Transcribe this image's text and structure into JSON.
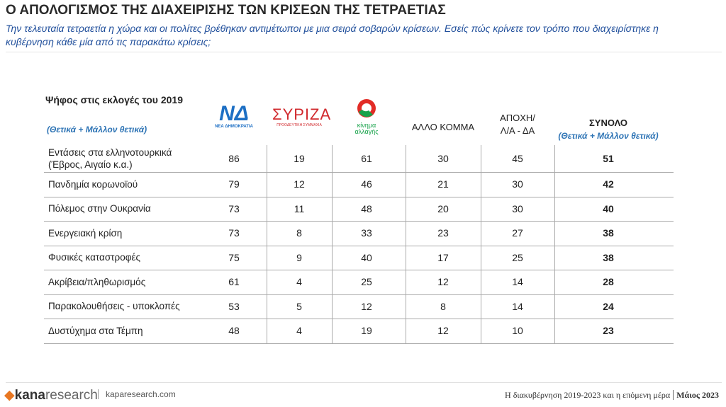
{
  "header": {
    "title": "Ο ΑΠΟΛΟΓΙΣΜΟΣ ΤΗΣ ΔΙΑΧΕΙΡΙΣΗΣ ΤΩΝ ΚΡΙΣΕΩΝ ΤΗΣ ΤΕΤΡΑΕΤΙΑΣ",
    "subtitle_lines": [
      "Την τελευταία τετραετία η χώρα και οι πολίτες βρέθηκαν αντιμέτωποι με μια σειρά σοβαρών κρίσεων. Εσείς πώς κρίνετε τον τρόπο που διαχειρίστηκε η",
      "κυβέρνηση κάθε μία από τις παρακάτω κρίσεις;"
    ]
  },
  "table": {
    "caption": "Ψήφος στις εκλογές του 2019",
    "caption_note": "(Θετικά + Μάλλον θετικά)",
    "logos": {
      "nd": {
        "mark": "ΝΔ",
        "sub": "ΝΕΑ ΔΗΜΟΚΡΑΤΙΑ"
      },
      "syriza": {
        "mark": "ΣΥΡΙΖΑ",
        "sub": "ΠΡΟΟΔΕΥΤΙΚΗ ΣΥΜΜΑΧΙΑ"
      },
      "kinal": {
        "line1": "κίνημα",
        "line2": "αλλαγής"
      }
    },
    "columns": {
      "other": "ΑΛΛΟ ΚΟΜΜΑ",
      "abstain_lines": [
        "ΑΠΟΧΗ/",
        "Λ/Α - ΔΑ"
      ],
      "total": "ΣΥΝΟΛΟ",
      "total_note": "(Θετικά + Μάλλον θετικά)"
    },
    "rows": [
      {
        "label": "Εντάσεις στα ελληνοτουρκικά (Έβρος, Αιγαίο κ.α.)",
        "values": [
          86,
          19,
          61,
          30,
          45,
          51
        ]
      },
      {
        "label": "Πανδημία κορωνοϊού",
        "values": [
          79,
          12,
          46,
          21,
          30,
          42
        ]
      },
      {
        "label": "Πόλεμος στην Ουκρανία",
        "values": [
          73,
          11,
          48,
          20,
          30,
          40
        ]
      },
      {
        "label": "Ενεργειακή κρίση",
        "values": [
          73,
          8,
          33,
          23,
          27,
          38
        ]
      },
      {
        "label": "Φυσικές καταστροφές",
        "values": [
          75,
          9,
          40,
          17,
          25,
          38
        ]
      },
      {
        "label": "Ακρίβεια/πληθωρισμός",
        "values": [
          61,
          4,
          25,
          12,
          14,
          28
        ]
      },
      {
        "label": "Παρακολουθήσεις - υποκλοπές",
        "values": [
          53,
          5,
          12,
          8,
          14,
          24
        ]
      },
      {
        "label": "Δυστύχημα στα Τέμπη",
        "values": [
          48,
          4,
          19,
          12,
          10,
          23
        ]
      }
    ]
  },
  "footer": {
    "logo_bold": "kana",
    "logo_light": "research",
    "site": "kaparesearch.com",
    "report": "Η διακυβέρνηση 2019-2023 και η επόμενη μέρα",
    "date": "Μάιος 2023"
  }
}
